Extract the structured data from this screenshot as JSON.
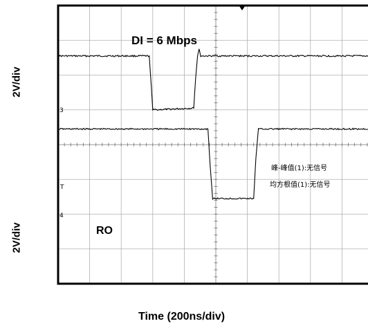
{
  "chart_data": {
    "type": "line",
    "title": "",
    "xlabel": "Time (200ns/div)",
    "ylabels": [
      "2V/div",
      "2V/div"
    ],
    "grid": true,
    "x_divisions": 10,
    "y_divisions": 8,
    "xlim": [
      0,
      10
    ],
    "ylim": [
      0,
      8
    ],
    "series": [
      {
        "name": "DI = 6 Mbps",
        "channel_marker": "3",
        "points": [
          [
            0.0,
            6.55
          ],
          [
            2.89,
            6.55
          ],
          [
            2.96,
            5.6
          ],
          [
            3.0,
            5.0
          ],
          [
            3.05,
            5.0
          ],
          [
            4.3,
            5.05
          ],
          [
            4.36,
            5.9
          ],
          [
            4.42,
            6.55
          ],
          [
            4.47,
            6.75
          ],
          [
            4.52,
            6.55
          ],
          [
            10.0,
            6.55
          ]
        ]
      },
      {
        "name": "RO",
        "channel_marker": "4",
        "points": [
          [
            0.0,
            4.45
          ],
          [
            4.75,
            4.45
          ],
          [
            4.82,
            3.4
          ],
          [
            4.9,
            2.45
          ],
          [
            6.2,
            2.45
          ],
          [
            6.27,
            3.6
          ],
          [
            6.35,
            4.45
          ],
          [
            10.0,
            4.45
          ]
        ]
      }
    ],
    "annotations": [
      "峰-峰值(1):无信号",
      "均方根值(1):无信号"
    ],
    "extra_markers": [
      "T"
    ]
  }
}
